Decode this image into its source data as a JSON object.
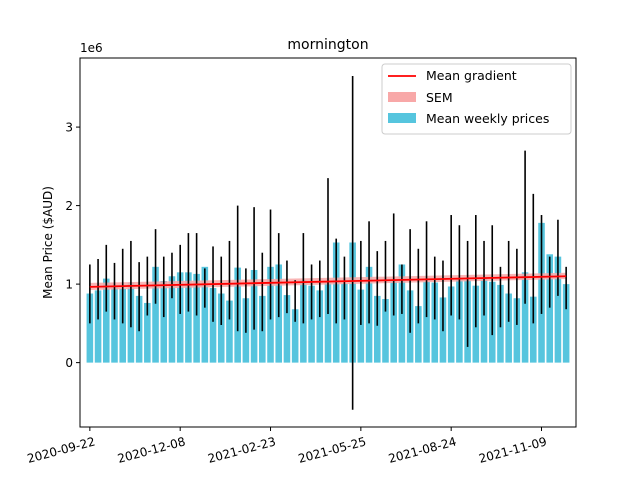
{
  "chart_data": {
    "type": "bar",
    "title": "mornington",
    "xlabel": "",
    "ylabel": "Mean Price ($AUD)",
    "y_offset_label": "1e6",
    "ylim": [
      -0.82,
      3.88
    ],
    "y_ticks": [
      0,
      1,
      2,
      3
    ],
    "x_tick_labels": [
      "2020-09-22",
      "2020-12-08",
      "2021-02-23",
      "2021-05-25",
      "2021-08-24",
      "2021-11-09"
    ],
    "x_tick_indices": [
      0,
      11,
      22,
      33,
      44,
      55
    ],
    "grid": false,
    "legend_placement": "top-right",
    "legend": [
      "Mean gradient",
      "SEM",
      "Mean weekly prices"
    ],
    "colors": {
      "bars": "#56c5de",
      "errorbars": "#000000",
      "gradient": "#ff0000",
      "sem": "#f8a8a8"
    },
    "series": [
      {
        "name": "Mean weekly prices",
        "unit_multiplier": 1000000,
        "values": [
          0.88,
          0.92,
          1.07,
          0.97,
          0.94,
          1.02,
          0.85,
          0.76,
          1.22,
          1.04,
          1.1,
          1.15,
          1.15,
          1.13,
          1.22,
          0.95,
          0.88,
          0.79,
          1.21,
          0.82,
          1.18,
          0.85,
          1.22,
          1.25,
          0.86,
          0.68,
          1.05,
          0.98,
          0.92,
          1.02,
          1.53,
          1.01,
          1.53,
          0.93,
          1.22,
          0.85,
          0.81,
          1.06,
          1.25,
          0.92,
          0.72,
          1.03,
          1.02,
          0.83,
          0.97,
          1.08,
          1.05,
          0.98,
          1.08,
          1.03,
          0.99,
          0.88,
          0.82,
          1.15,
          0.84,
          1.78,
          1.38,
          1.35,
          1.0
        ],
        "err_low": [
          0.5,
          0.55,
          0.65,
          0.55,
          0.5,
          0.45,
          0.4,
          0.6,
          0.75,
          0.58,
          0.82,
          0.62,
          0.65,
          0.6,
          0.7,
          0.52,
          0.48,
          0.55,
          0.4,
          0.38,
          0.42,
          0.4,
          0.55,
          0.58,
          0.63,
          0.52,
          0.5,
          0.55,
          0.58,
          0.62,
          0.5,
          0.55,
          -0.6,
          0.48,
          0.5,
          0.47,
          0.65,
          0.6,
          0.62,
          0.38,
          0.5,
          0.58,
          0.55,
          0.4,
          0.6,
          0.55,
          0.2,
          0.45,
          0.6,
          0.35,
          0.45,
          0.52,
          0.48,
          0.75,
          0.5,
          0.62,
          0.7,
          0.85,
          0.68
        ],
        "err_high": [
          1.25,
          1.32,
          1.5,
          1.27,
          1.45,
          1.55,
          1.28,
          1.35,
          1.7,
          1.35,
          1.4,
          1.5,
          1.65,
          1.65,
          1.2,
          1.48,
          1.35,
          1.55,
          2.0,
          1.2,
          1.98,
          1.4,
          1.95,
          1.65,
          1.3,
          1.05,
          1.65,
          1.25,
          1.3,
          2.35,
          1.58,
          1.35,
          3.65,
          1.55,
          1.8,
          1.42,
          1.55,
          1.9,
          1.25,
          1.7,
          1.45,
          1.8,
          1.35,
          1.3,
          1.88,
          1.75,
          1.55,
          1.88,
          1.55,
          1.75,
          1.22,
          1.55,
          1.45,
          2.7,
          2.15,
          1.88,
          1.35,
          1.82,
          1.22
        ]
      },
      {
        "name": "Mean gradient",
        "x": [
          0,
          58
        ],
        "values": [
          0.965,
          1.1
        ]
      },
      {
        "name": "SEM",
        "lower": [
          0.925,
          1.065
        ],
        "upper": [
          1.015,
          1.145
        ]
      }
    ]
  }
}
